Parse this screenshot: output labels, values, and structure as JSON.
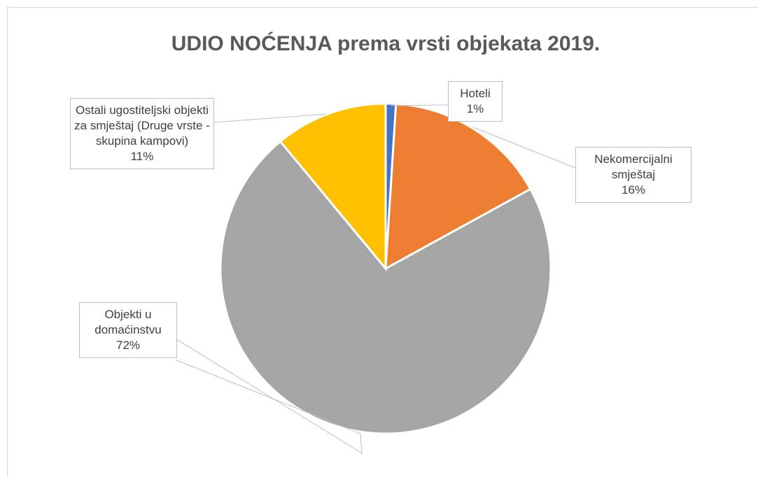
{
  "chart_data": {
    "type": "pie",
    "title": "UDIO NOĆENJA prema vrsti objekata 2019.",
    "categories": [
      "Hoteli",
      "Nekomercijalni smještaj",
      "Objekti u domaćinstvu",
      "Ostali ugostiteljski objekti za smještaj (Druge vrste - skupina kampovi)"
    ],
    "values": [
      1,
      16,
      72,
      11
    ],
    "value_labels": [
      "1%",
      "16%",
      "72%",
      "11%"
    ],
    "colors": [
      "#4472c4",
      "#ed7d31",
      "#a5a5a5",
      "#ffc000"
    ]
  }
}
